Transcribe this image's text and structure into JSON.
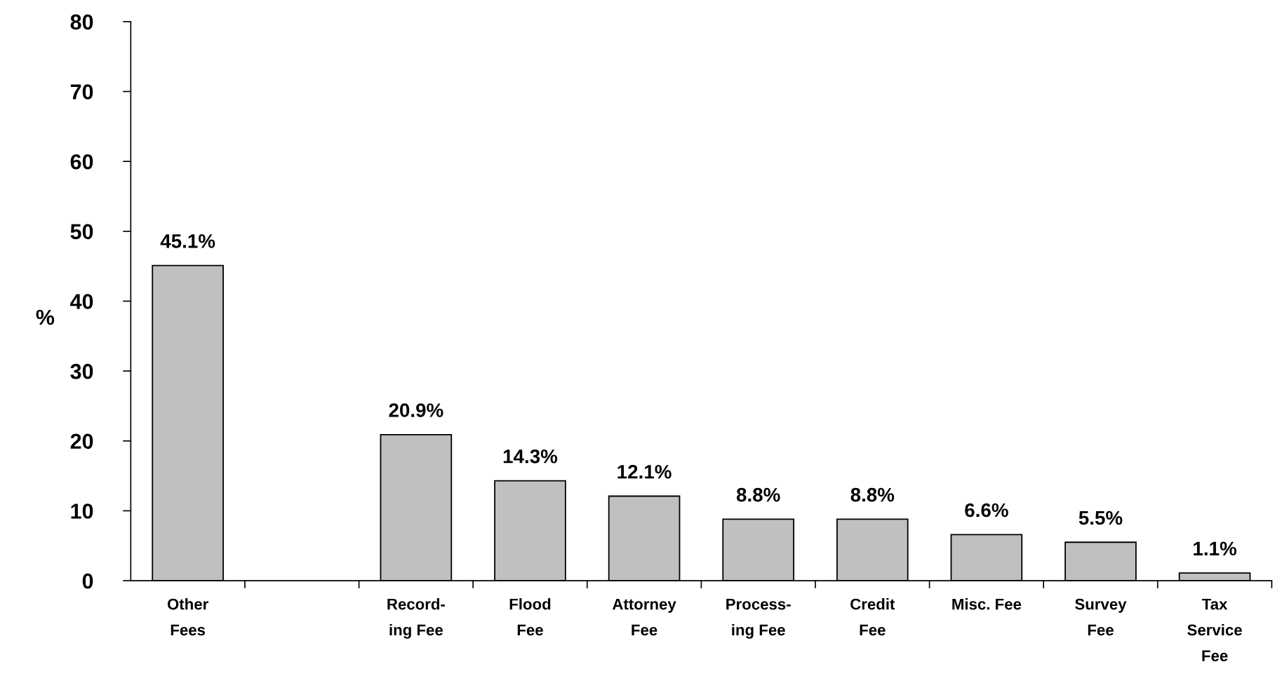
{
  "chart_data": {
    "type": "bar",
    "ylabel": "%",
    "categories": [
      "Other\nFees",
      null,
      "Record-\ning Fee",
      "Flood\nFee",
      "Attorney\nFee",
      "Process-\ning Fee",
      "Credit\nFee",
      "Misc. Fee",
      "Survey\nFee",
      "Tax\nService\nFee"
    ],
    "values": [
      45.1,
      null,
      20.9,
      14.3,
      12.1,
      8.8,
      8.8,
      6.6,
      5.5,
      1.1
    ],
    "value_labels": [
      "45.1%",
      null,
      "20.9%",
      "14.3%",
      "12.1%",
      "8.8%",
      "8.8%",
      "6.6%",
      "5.5%",
      "1.1%"
    ],
    "color": "#c0c0c0",
    "ylim": [
      0,
      80
    ],
    "yticks": [
      0,
      10,
      20,
      30,
      40,
      50,
      60,
      70,
      80
    ],
    "grid": false,
    "legend": false
  }
}
